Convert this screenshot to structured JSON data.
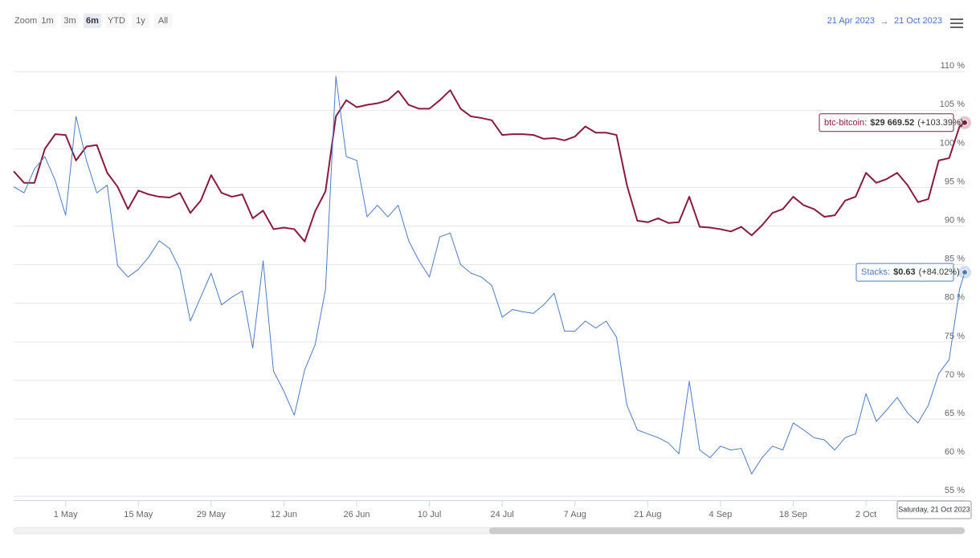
{
  "toolbar": {
    "zoom_label": "Zoom",
    "buttons": [
      "1m",
      "3m",
      "6m",
      "YTD",
      "1y",
      "All"
    ],
    "selected": 2,
    "from": "21 Apr 2023",
    "separator": "→",
    "to": "21 Oct 2023"
  },
  "chart_data": {
    "type": "line",
    "x": [
      "2023-04-21",
      "2023-04-23",
      "2023-04-25",
      "2023-04-27",
      "2023-04-29",
      "2023-05-01",
      "2023-05-03",
      "2023-05-05",
      "2023-05-07",
      "2023-05-09",
      "2023-05-11",
      "2023-05-13",
      "2023-05-15",
      "2023-05-17",
      "2023-05-19",
      "2023-05-21",
      "2023-05-23",
      "2023-05-25",
      "2023-05-27",
      "2023-05-29",
      "2023-05-31",
      "2023-06-02",
      "2023-06-04",
      "2023-06-06",
      "2023-06-08",
      "2023-06-10",
      "2023-06-12",
      "2023-06-14",
      "2023-06-16",
      "2023-06-18",
      "2023-06-20",
      "2023-06-22",
      "2023-06-24",
      "2023-06-26",
      "2023-06-28",
      "2023-06-30",
      "2023-07-02",
      "2023-07-04",
      "2023-07-06",
      "2023-07-08",
      "2023-07-10",
      "2023-07-12",
      "2023-07-14",
      "2023-07-16",
      "2023-07-18",
      "2023-07-20",
      "2023-07-22",
      "2023-07-24",
      "2023-07-26",
      "2023-07-28",
      "2023-07-30",
      "2023-08-01",
      "2023-08-03",
      "2023-08-05",
      "2023-08-07",
      "2023-08-09",
      "2023-08-11",
      "2023-08-13",
      "2023-08-15",
      "2023-08-17",
      "2023-08-19",
      "2023-08-21",
      "2023-08-23",
      "2023-08-25",
      "2023-08-27",
      "2023-08-29",
      "2023-08-31",
      "2023-09-02",
      "2023-09-04",
      "2023-09-06",
      "2023-09-08",
      "2023-09-10",
      "2023-09-12",
      "2023-09-14",
      "2023-09-16",
      "2023-09-18",
      "2023-09-20",
      "2023-09-22",
      "2023-09-24",
      "2023-09-26",
      "2023-09-28",
      "2023-09-30",
      "2023-10-02",
      "2023-10-04",
      "2023-10-06",
      "2023-10-08",
      "2023-10-10",
      "2023-10-12",
      "2023-10-14",
      "2023-10-16",
      "2023-10-18",
      "2023-10-20",
      "2023-10-21"
    ],
    "series": [
      {
        "name": "btc-bitcoin",
        "color": "#8b1a3e",
        "width": 2,
        "values": [
          97.1,
          95.6,
          95.6,
          100.0,
          101.9,
          101.8,
          98.5,
          100.3,
          100.5,
          96.9,
          95.1,
          92.2,
          94.6,
          94.1,
          93.8,
          93.7,
          94.3,
          91.7,
          93.3,
          96.6,
          94.3,
          93.8,
          94.1,
          91.0,
          92.0,
          89.6,
          89.8,
          89.6,
          88.0,
          91.9,
          94.5,
          104.2,
          106.3,
          105.4,
          105.7,
          105.9,
          106.3,
          107.5,
          105.7,
          105.2,
          105.2,
          106.3,
          107.6,
          105.2,
          104.2,
          104.0,
          103.7,
          101.8,
          101.9,
          101.9,
          101.8,
          101.3,
          101.4,
          101.1,
          101.6,
          102.9,
          102.1,
          102.1,
          101.8,
          95.3,
          90.7,
          90.5,
          91.0,
          90.4,
          90.5,
          93.8,
          89.9,
          89.8,
          89.6,
          89.3,
          89.9,
          88.8,
          90.1,
          91.7,
          92.2,
          93.8,
          92.7,
          92.2,
          91.2,
          91.4,
          93.3,
          93.8,
          96.9,
          95.6,
          96.1,
          96.9,
          95.3,
          93.1,
          93.5,
          98.5,
          98.8,
          102.9,
          103.39
        ]
      },
      {
        "name": "Stacks",
        "color": "#4a7cc7",
        "width": 1,
        "values": [
          95.1,
          94.3,
          97.4,
          99.0,
          95.9,
          91.4,
          104.2,
          98.5,
          94.3,
          95.3,
          84.9,
          83.4,
          84.4,
          86.0,
          88.1,
          87.1,
          84.4,
          77.7,
          80.8,
          83.9,
          79.8,
          80.8,
          81.6,
          74.2,
          85.5,
          71.2,
          68.6,
          65.5,
          71.4,
          74.6,
          81.8,
          109.4,
          99.0,
          98.5,
          91.2,
          92.7,
          91.2,
          92.7,
          88.1,
          85.5,
          83.4,
          88.6,
          89.1,
          85.0,
          83.9,
          83.4,
          82.3,
          78.2,
          79.2,
          78.9,
          78.7,
          79.8,
          81.3,
          76.4,
          76.4,
          77.7,
          76.8,
          77.7,
          75.6,
          66.8,
          63.6,
          63.1,
          62.6,
          61.9,
          60.5,
          69.9,
          61.0,
          60.0,
          61.5,
          61.0,
          61.2,
          57.9,
          60.0,
          61.5,
          61.0,
          64.5,
          63.6,
          62.6,
          62.3,
          61.0,
          62.6,
          63.1,
          68.3,
          64.7,
          66.2,
          67.8,
          65.8,
          64.5,
          66.8,
          70.9,
          72.7,
          81.8,
          84.02
        ]
      }
    ],
    "tooltips": [
      {
        "label": "btc-bitcoin:",
        "price": "$29 669.52",
        "change": "(+103.39%)"
      },
      {
        "label": "Stacks:",
        "price": "$0.63",
        "change": "(+84.02%)"
      }
    ],
    "x_tooltip": "Saturday, 21 Oct 2023",
    "xlim": [
      "2023-04-21",
      "2023-10-21"
    ],
    "xticks": [
      {
        "value": "2023-05-01",
        "label": "1 May"
      },
      {
        "value": "2023-05-15",
        "label": "15 May"
      },
      {
        "value": "2023-05-29",
        "label": "29 May"
      },
      {
        "value": "2023-06-12",
        "label": "12 Jun"
      },
      {
        "value": "2023-06-26",
        "label": "26 Jun"
      },
      {
        "value": "2023-07-10",
        "label": "10 Jul"
      },
      {
        "value": "2023-07-24",
        "label": "24 Jul"
      },
      {
        "value": "2023-08-07",
        "label": "7 Aug"
      },
      {
        "value": "2023-08-21",
        "label": "21 Aug"
      },
      {
        "value": "2023-09-04",
        "label": "4 Sep"
      },
      {
        "value": "2023-09-18",
        "label": "18 Sep"
      },
      {
        "value": "2023-10-02",
        "label": "2 Oct"
      }
    ],
    "ylim": [
      54.5,
      114.6
    ],
    "yticks": [
      {
        "value": 55,
        "label": "55 %"
      },
      {
        "value": 60,
        "label": "60 %"
      },
      {
        "value": 65,
        "label": "65 %"
      },
      {
        "value": 70,
        "label": "70 %"
      },
      {
        "value": 75,
        "label": "75 %"
      },
      {
        "value": 80,
        "label": "80 %"
      },
      {
        "value": 85,
        "label": "85 %"
      },
      {
        "value": 90,
        "label": "90 %"
      },
      {
        "value": 95,
        "label": "95 %"
      },
      {
        "value": 100,
        "label": "100 %"
      },
      {
        "value": 105,
        "label": "105 %"
      },
      {
        "value": 110,
        "label": "110 %"
      }
    ],
    "grid": true
  }
}
